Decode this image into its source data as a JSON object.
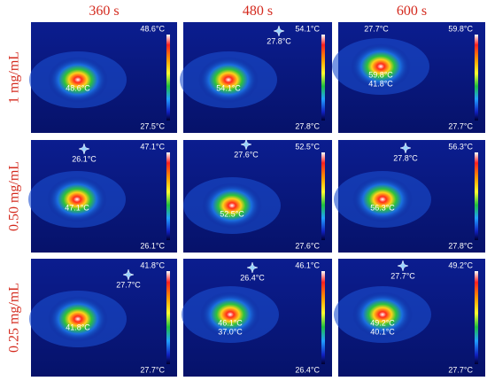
{
  "columns": [
    "360 s",
    "480 s",
    "600 s"
  ],
  "rows": [
    {
      "label": "1 mg/mL",
      "panels": [
        {
          "max": "48.6°C",
          "min": "27.5°C",
          "center": [
            "48.6°C"
          ]
        },
        {
          "max": "54.1°C",
          "min": "27.8°C",
          "marker": "27.8°C",
          "center": [
            "54.1°C"
          ]
        },
        {
          "max": "59.8°C",
          "min": "27.7°C",
          "marker": "27.7°C",
          "center": [
            "59.8°C",
            "41.8°C"
          ]
        }
      ]
    },
    {
      "label": "0.50 mg/mL",
      "panels": [
        {
          "max": "47.1°C",
          "min": "26.1°C",
          "marker": "26.1°C",
          "center": [
            "47.1°C"
          ]
        },
        {
          "max": "52.5°C",
          "min": "27.6°C",
          "marker": "27.6°C",
          "center": [
            "52.5°C"
          ]
        },
        {
          "max": "56.3°C",
          "min": "27.8°C",
          "marker": "27.8°C",
          "center": [
            "56.3°C"
          ]
        }
      ]
    },
    {
      "label": "0.25 mg/mL",
      "panels": [
        {
          "max": "41.8°C",
          "min": "27.7°C",
          "marker": "27.7°C",
          "center": [
            "41.8°C"
          ]
        },
        {
          "max": "46.1°C",
          "min": "26.4°C",
          "marker": "26.4°C",
          "center": [
            "46.1°C",
            "37.0°C"
          ]
        },
        {
          "max": "49.2°C",
          "min": "27.7°C",
          "marker": "27.7°C",
          "center": [
            "49.2°C",
            "40.1°C"
          ]
        }
      ]
    }
  ]
}
